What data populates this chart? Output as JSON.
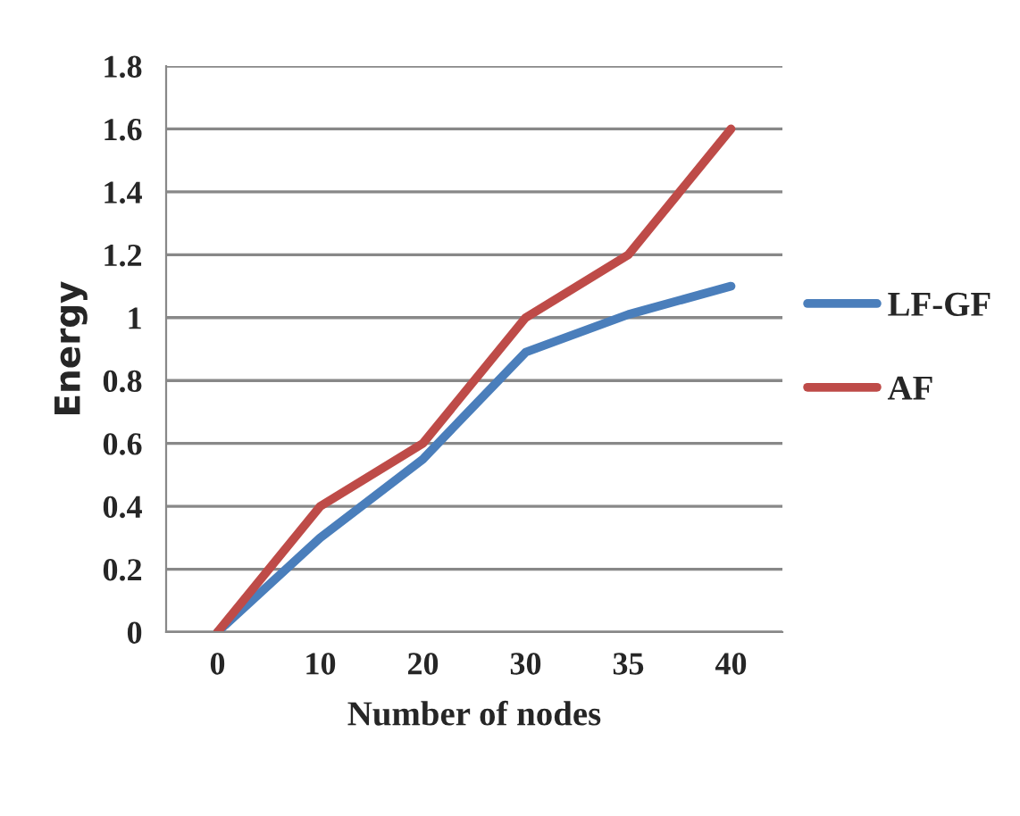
{
  "chart_data": {
    "type": "line",
    "xlabel": "Number of nodes",
    "ylabel": "Energy",
    "categories": [
      "0",
      "10",
      "20",
      "30",
      "35",
      "40"
    ],
    "series": [
      {
        "name": "LF-GF",
        "color": "#4a7ebb",
        "values": [
          0,
          0.3,
          0.55,
          0.89,
          1.01,
          1.1
        ]
      },
      {
        "name": "AF",
        "color": "#be4b48",
        "values": [
          0,
          0.4,
          0.6,
          1.0,
          1.2,
          1.6
        ]
      }
    ],
    "ylim": [
      0,
      1.8
    ],
    "yticks": [
      0,
      0.2,
      0.4,
      0.6,
      0.8,
      1,
      1.2,
      1.4,
      1.6,
      1.8
    ],
    "grid": "y",
    "legend": "right",
    "marker": "none",
    "line_style": "solid"
  }
}
